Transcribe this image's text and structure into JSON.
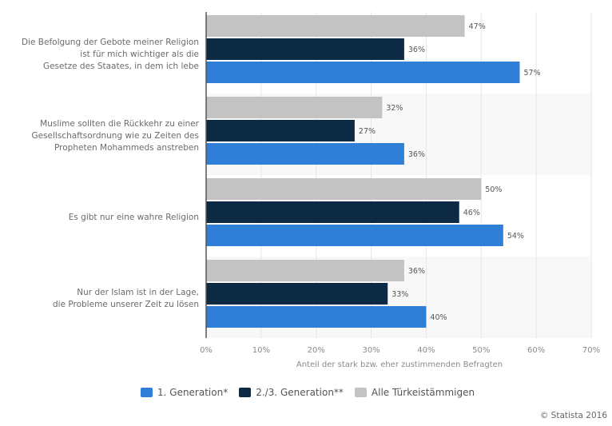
{
  "chart_data": {
    "type": "bar",
    "orientation": "horizontal",
    "categories": [
      [
        "Die Befolgung der Gebote meiner Religion",
        "ist für mich wichtiger als die",
        "Gesetze des Staates, in dem ich lebe"
      ],
      [
        "Muslime sollten die Rückkehr zu einer",
        "Gesellschaftsordnung wie zu Zeiten des",
        "Propheten Mohammeds anstreben"
      ],
      [
        "Es gibt nur eine wahre Religion"
      ],
      [
        "Nur der Islam ist in der Lage,",
        "die Probleme unserer Zeit zu lösen"
      ]
    ],
    "series": [
      {
        "name": "Alle Türkeistämmigen",
        "color": "#c3c3c3",
        "values": [
          47,
          32,
          50,
          36
        ],
        "labels": [
          "47%",
          "32%",
          "50%",
          "36%"
        ]
      },
      {
        "name": "2./3. Generation**",
        "color": "#0d2a45",
        "values": [
          36,
          27,
          46,
          33
        ],
        "labels": [
          "36%",
          "27%",
          "46%",
          "33%"
        ]
      },
      {
        "name": "1. Generation*",
        "color": "#2f7ed8",
        "values": [
          57,
          36,
          54,
          40
        ],
        "labels": [
          "57%",
          "36%",
          "54%",
          "40%"
        ]
      }
    ],
    "xlabel": "Anteil der stark bzw. eher zustimmenden Befragten",
    "ylabel": "",
    "xlim": [
      0,
      70
    ],
    "xticks": [
      "0%",
      "10%",
      "20%",
      "30%",
      "40%",
      "50%",
      "60%",
      "70%"
    ],
    "grid": true,
    "legend_position": "bottom"
  },
  "legend": [
    {
      "label": "1. Generation*",
      "color": "#2f7ed8"
    },
    {
      "label": "2./3. Generation**",
      "color": "#0d2a45"
    },
    {
      "label": "Alle Türkeistämmigen",
      "color": "#c3c3c3"
    }
  ],
  "credit": "© Statista 2016"
}
